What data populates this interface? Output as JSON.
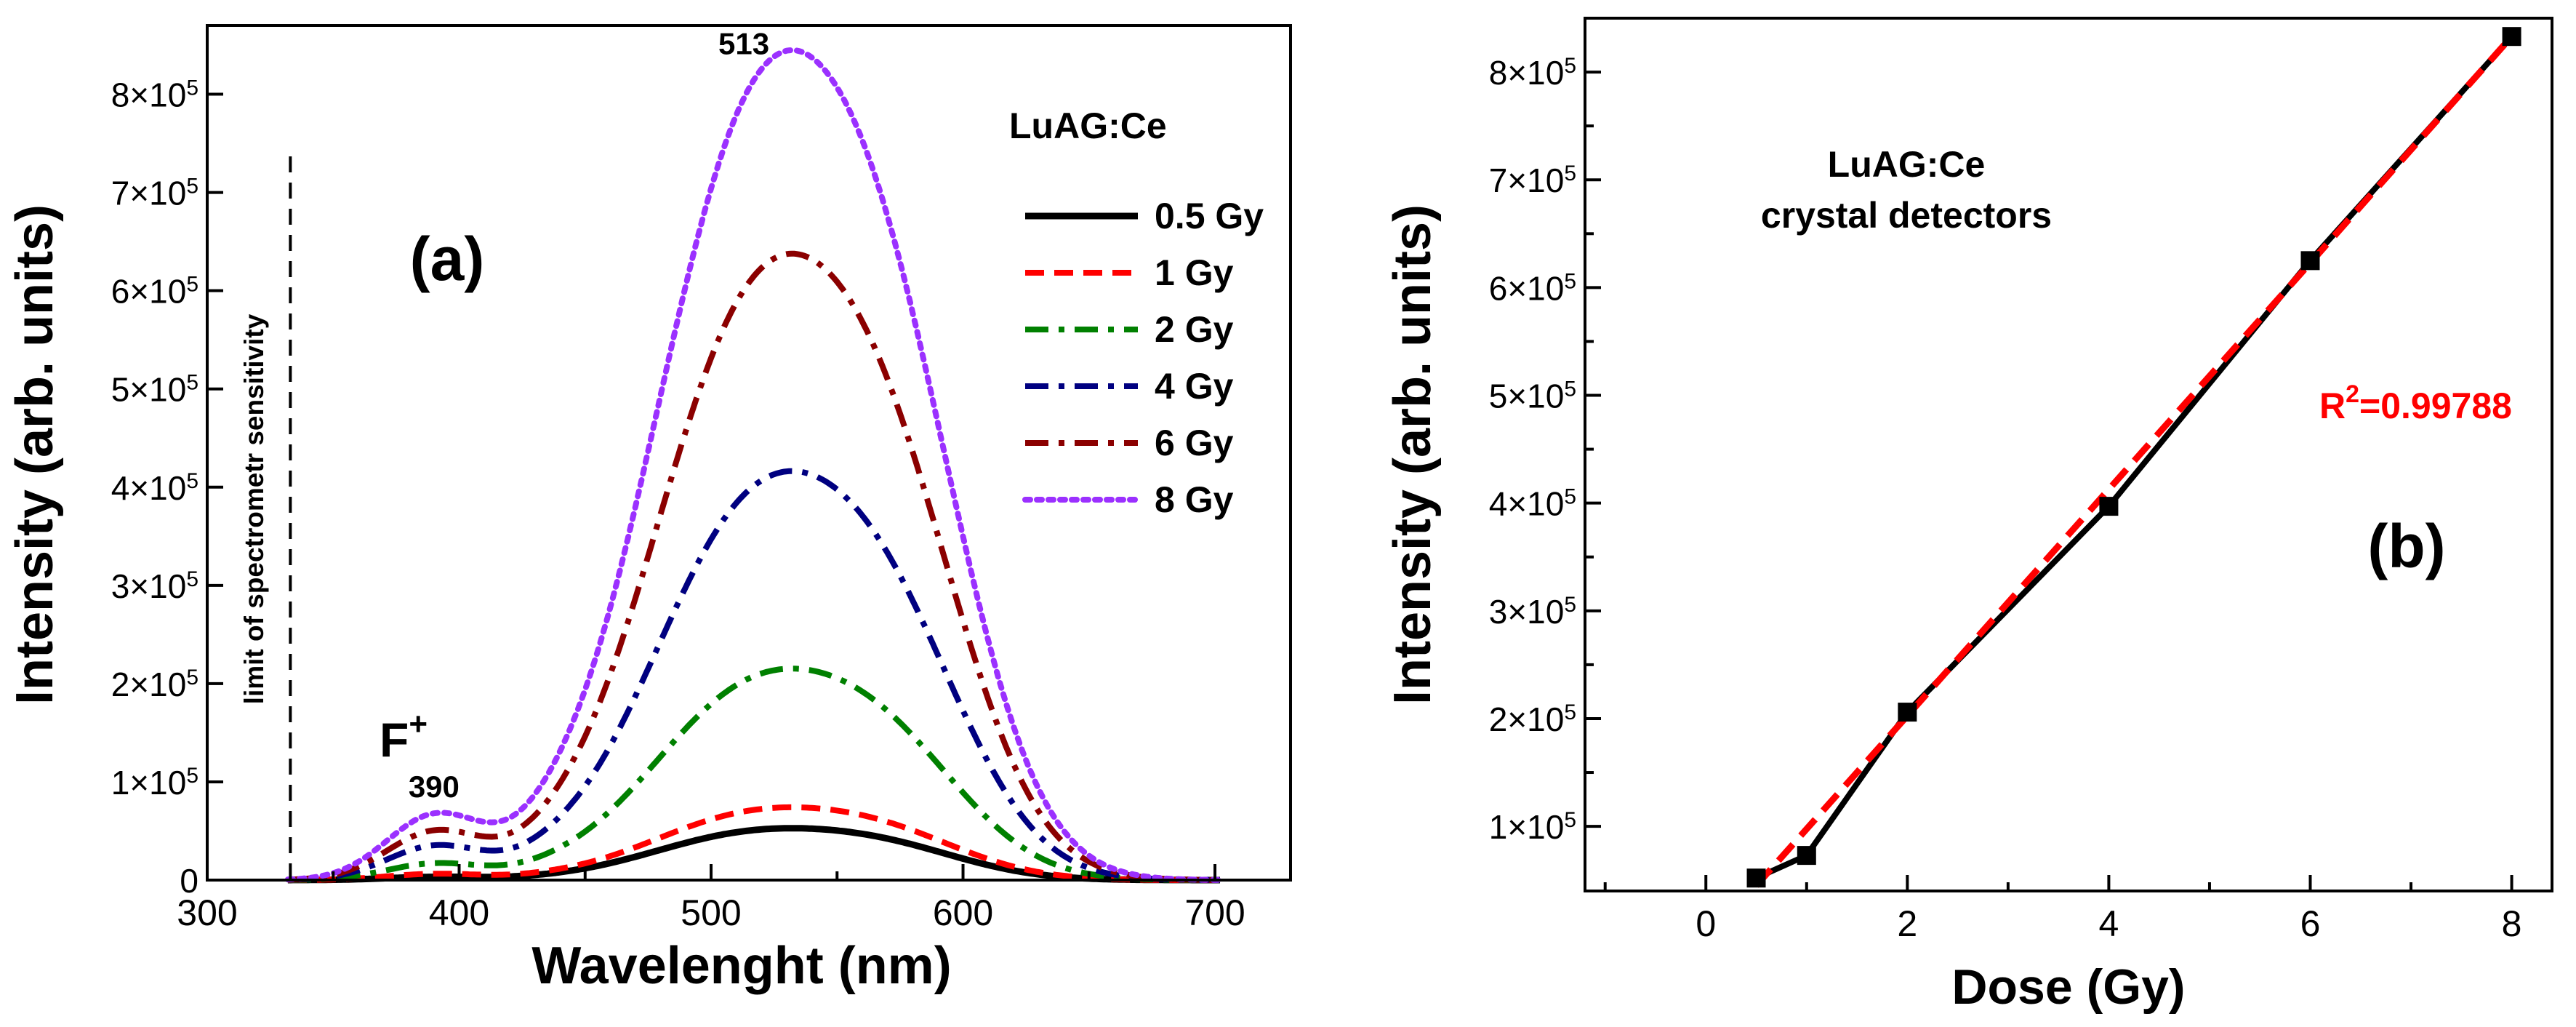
{
  "chart_data": [
    {
      "id": "a",
      "type": "line",
      "panel_label": "(a)",
      "xlabel": "Wavelenght (nm)",
      "ylabel": "Intensity (arb. units)",
      "xlim": [
        300,
        730
      ],
      "ylim": [
        0,
        870000
      ],
      "xticks": [
        300,
        400,
        500,
        600,
        700
      ],
      "yticks": [
        {
          "value": 0,
          "mantissa": "0",
          "exponent": ""
        },
        {
          "value": 100000,
          "mantissa": "1×10",
          "exponent": "5"
        },
        {
          "value": 200000,
          "mantissa": "2×10",
          "exponent": "5"
        },
        {
          "value": 300000,
          "mantissa": "3×10",
          "exponent": "5"
        },
        {
          "value": 400000,
          "mantissa": "4×10",
          "exponent": "5"
        },
        {
          "value": 500000,
          "mantissa": "5×10",
          "exponent": "5"
        },
        {
          "value": 600000,
          "mantissa": "6×10",
          "exponent": "5"
        },
        {
          "value": 700000,
          "mantissa": "7×10",
          "exponent": "5"
        },
        {
          "value": 800000,
          "mantissa": "8×10",
          "exponent": "5"
        }
      ],
      "legend_title": "LuAG:Ce",
      "series": [
        {
          "name": "0.5 Gy",
          "color": "#000000",
          "style": "solid",
          "peak": 52000,
          "uv_peak": 3000
        },
        {
          "name": "1 Gy",
          "color": "#ff0000",
          "style": "dash",
          "peak": 73000,
          "uv_peak": 6000
        },
        {
          "name": "2 Gy",
          "color": "#008000",
          "style": "dashdot",
          "peak": 212000,
          "uv_peak": 16000
        },
        {
          "name": "4 Gy",
          "color": "#000080",
          "style": "dashdot",
          "peak": 410000,
          "uv_peak": 33000
        },
        {
          "name": "6 Gy",
          "color": "#8b0000",
          "style": "dashdot",
          "peak": 628000,
          "uv_peak": 47000
        },
        {
          "name": "8 Gy",
          "color": "#9b30ff",
          "style": "dot",
          "peak": 832000,
          "uv_peak": 63000
        }
      ],
      "annotations": {
        "limit_text": "limit of spectrometr sensitivity",
        "limit_x": 333,
        "fplus_label": "F",
        "fplus_sup": "+",
        "uv_peak_label": "390",
        "main_peak_label": "513"
      }
    },
    {
      "id": "b",
      "type": "line",
      "panel_label": "(b)",
      "xlabel": "Dose (Gy)",
      "ylabel": "Intensity (arb. units)",
      "xlim": [
        -1.2,
        8.4
      ],
      "ylim": [
        40000,
        850000
      ],
      "xticks": [
        0,
        2,
        4,
        6,
        8
      ],
      "yticks": [
        {
          "value": 100000,
          "mantissa": "1×10",
          "exponent": "5"
        },
        {
          "value": 200000,
          "mantissa": "2×10",
          "exponent": "5"
        },
        {
          "value": 300000,
          "mantissa": "3×10",
          "exponent": "5"
        },
        {
          "value": 400000,
          "mantissa": "4×10",
          "exponent": "5"
        },
        {
          "value": 500000,
          "mantissa": "5×10",
          "exponent": "5"
        },
        {
          "value": 600000,
          "mantissa": "6×10",
          "exponent": "5"
        },
        {
          "value": 700000,
          "mantissa": "7×10",
          "exponent": "5"
        },
        {
          "value": 800000,
          "mantissa": "8×10",
          "exponent": "5"
        }
      ],
      "points": {
        "x": [
          0.5,
          1,
          2,
          4,
          6,
          8
        ],
        "y": [
          52000,
          73000,
          206000,
          397000,
          625000,
          833000
        ]
      },
      "fit": {
        "x": [
          0.5,
          8
        ],
        "y": [
          45000,
          833000
        ],
        "color": "#ff0000"
      },
      "title_lines": [
        "LuAG:Ce",
        "crystal detectors"
      ],
      "r2_label": "R",
      "r2_sup": "2",
      "r2_value": "=0.99788",
      "r2_color": "#ff0000"
    }
  ]
}
